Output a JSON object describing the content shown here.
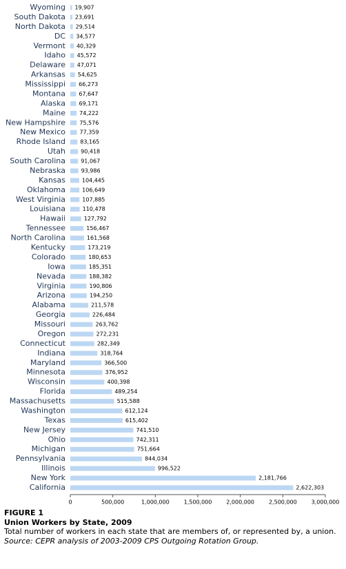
{
  "chart_data": {
    "type": "bar",
    "orientation": "horizontal",
    "figure_label": "FIGURE 1",
    "title": "Union Workers by State, 2009",
    "subtitle": "Total number of workers in each state that are members of, or represented by, a union.",
    "source": "Source: CEPR analysis of 2003-2009 CPS Outgoing Rotation Group.",
    "categories": [
      "Wyoming",
      "South Dakota",
      "North Dakota",
      "DC",
      "Vermont",
      "Idaho",
      "Delaware",
      "Arkansas",
      "Mississippi",
      "Montana",
      "Alaska",
      "Maine",
      "New Hampshire",
      "New Mexico",
      "Rhode Island",
      "Utah",
      "South Carolina",
      "Nebraska",
      "Kansas",
      "Oklahoma",
      "West Virginia",
      "Louisiana",
      "Hawaii",
      "Tennessee",
      "North Carolina",
      "Kentucky",
      "Colorado",
      "Iowa",
      "Nevada",
      "Virginia",
      "Arizona",
      "Alabama",
      "Georgia",
      "Missouri",
      "Oregon",
      "Connecticut",
      "Indiana",
      "Maryland",
      "Minnesota",
      "Wisconsin",
      "Florida",
      "Massachusetts",
      "Washington",
      "Texas",
      "New Jersey",
      "Ohio",
      "Michigan",
      "Pennsylvania",
      "Illinois",
      "New York",
      "California"
    ],
    "values": [
      19907,
      23691,
      29514,
      34577,
      40329,
      45572,
      47071,
      54625,
      66273,
      67647,
      69171,
      74222,
      75576,
      77359,
      83165,
      90418,
      91067,
      93986,
      104445,
      106649,
      107885,
      110478,
      127792,
      156467,
      161568,
      173219,
      180653,
      185351,
      188382,
      190806,
      194250,
      211578,
      226484,
      263762,
      272231,
      282349,
      318764,
      366500,
      376952,
      400398,
      489254,
      515588,
      612124,
      615402,
      741510,
      742311,
      751664,
      844034,
      996522,
      2181766,
      2622303
    ],
    "value_labels": [
      "19,907",
      "23,691",
      "29,514",
      "34,577",
      "40,329",
      "45,572",
      "47,071",
      "54,625",
      "66,273",
      "67,647",
      "69,171",
      "74,222",
      "75,576",
      "77,359",
      "83,165",
      "90,418",
      "91,067",
      "93,986",
      "104,445",
      "106,649",
      "107,885",
      "110,478",
      "127,792",
      "156,467",
      "161,568",
      "173,219",
      "180,653",
      "185,351",
      "188,382",
      "190,806",
      "194,250",
      "211,578",
      "226,484",
      "263,762",
      "272,231",
      "282,349",
      "318,764",
      "366,500",
      "376,952",
      "400,398",
      "489,254",
      "515,588",
      "612,124",
      "615,402",
      "741,510",
      "742,311",
      "751,664",
      "844,034",
      "996,522",
      "2,181,766",
      "2,622,303"
    ],
    "color": "#bcd7f3",
    "xlim": [
      0,
      3000000
    ],
    "xticks": [
      0,
      {
        "value": 500000,
        "label": "500,000"
      },
      {
        "value": 1000000,
        "label": "1,000,000"
      },
      {
        "value": 1500000,
        "label": "1,500,000"
      },
      {
        "value": 2000000,
        "label": "2,000,000"
      },
      {
        "value": 2500000,
        "label": "2,500,000"
      },
      {
        "value": 3000000,
        "label": "3,000,000"
      }
    ],
    "grid": false
  }
}
